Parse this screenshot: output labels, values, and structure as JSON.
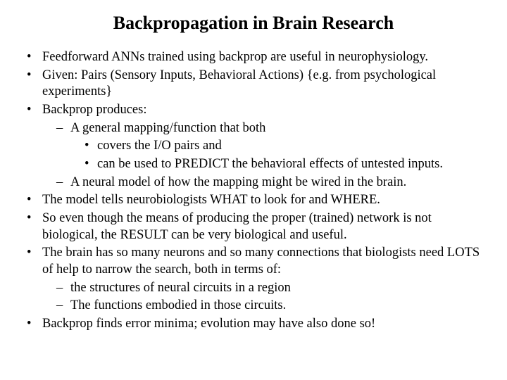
{
  "background_color": "#ffffff",
  "text_color": "#000000",
  "title_fontsize": 26,
  "body_fontsize": 18.5,
  "font_family": "Times New Roman",
  "title": "Backpropagation in Brain Research",
  "bullets": {
    "b1": "Feedforward ANNs trained using backprop are useful in neurophysiology.",
    "b2": "Given: Pairs (Sensory Inputs, Behavioral Actions) {e.g. from psychological experiments}",
    "b3": "Backprop produces:",
    "b3_1": "A general mapping/function that both",
    "b3_1_1": "covers the I/O pairs and",
    "b3_1_2": "can be used to PREDICT the behavioral effects of untested inputs.",
    "b3_2": "A neural model of how the mapping might be wired in the brain.",
    "b4": "The model tells neurobiologists WHAT to look for and WHERE.",
    "b5": "So even though the means of producing the proper (trained) network is not biological, the RESULT can be very biological and useful.",
    "b6": "The brain has so many neurons and so many connections that biologists need LOTS of help to narrow the search, both in terms of:",
    "b6_1": " the structures of neural circuits in a region",
    "b6_2": "The functions embodied in those circuits.",
    "b7": "Backprop finds error minima; evolution may have also done so!"
  }
}
